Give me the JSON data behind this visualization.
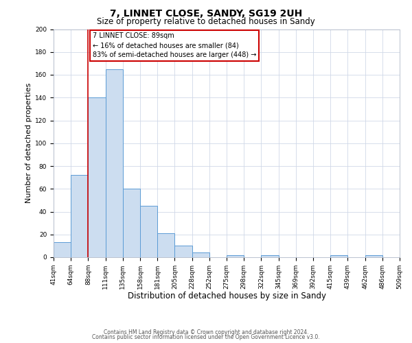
{
  "title": "7, LINNET CLOSE, SANDY, SG19 2UH",
  "subtitle": "Size of property relative to detached houses in Sandy",
  "xlabel": "Distribution of detached houses by size in Sandy",
  "ylabel": "Number of detached properties",
  "bar_values": [
    13,
    72,
    140,
    165,
    60,
    45,
    21,
    10,
    4,
    0,
    2,
    0,
    2,
    0,
    0,
    0,
    2,
    0,
    2,
    0
  ],
  "bin_labels": [
    "41sqm",
    "64sqm",
    "88sqm",
    "111sqm",
    "135sqm",
    "158sqm",
    "181sqm",
    "205sqm",
    "228sqm",
    "252sqm",
    "275sqm",
    "298sqm",
    "322sqm",
    "345sqm",
    "369sqm",
    "392sqm",
    "415sqm",
    "439sqm",
    "462sqm",
    "486sqm",
    "509sqm"
  ],
  "bar_color": "#ccddf0",
  "bar_edge_color": "#5b9bd5",
  "background_color": "#ffffff",
  "grid_color": "#d0d8e8",
  "red_line_bin_edge": 2,
  "annotation_text": "7 LINNET CLOSE: 89sqm\n← 16% of detached houses are smaller (84)\n83% of semi-detached houses are larger (448) →",
  "annotation_box_color": "#ffffff",
  "annotation_box_edge": "#cc0000",
  "ylim": [
    0,
    200
  ],
  "yticks": [
    0,
    20,
    40,
    60,
    80,
    100,
    120,
    140,
    160,
    180,
    200
  ],
  "title_fontsize": 10,
  "subtitle_fontsize": 8.5,
  "xlabel_fontsize": 8.5,
  "ylabel_fontsize": 8,
  "tick_fontsize": 6.5,
  "annot_fontsize": 7,
  "footer_line1": "Contains HM Land Registry data © Crown copyright and database right 2024.",
  "footer_line2": "Contains public sector information licensed under the Open Government Licence v3.0.",
  "footer_fontsize": 5.5
}
